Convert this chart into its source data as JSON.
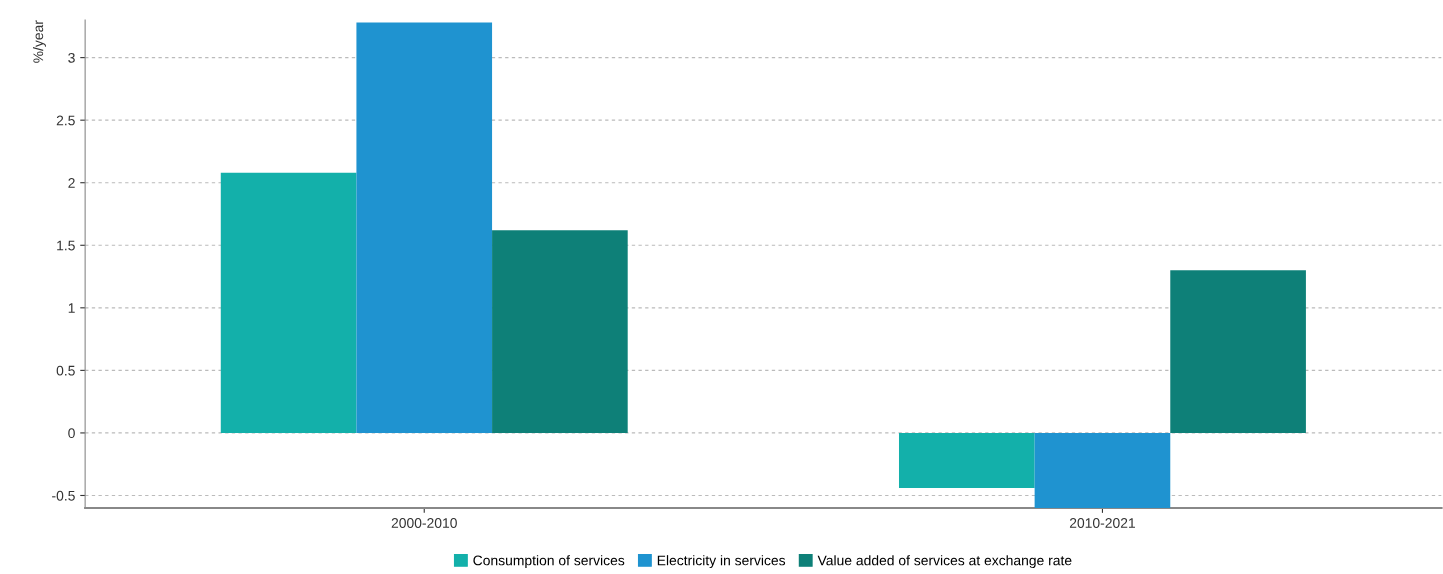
{
  "chart_data": {
    "type": "bar",
    "ylabel": "%/year",
    "categories": [
      "2000-2010",
      "2010-2021"
    ],
    "series": [
      {
        "name": "Consumption of services",
        "color": "#13b0aa",
        "values": [
          2.08,
          -0.44
        ]
      },
      {
        "name": "Electricity in services",
        "color": "#1f93d0",
        "values": [
          3.28,
          -0.6
        ]
      },
      {
        "name": "Value added of services at exchange rate",
        "color": "#0e8078",
        "values": [
          1.62,
          1.3
        ]
      }
    ],
    "ylim": [
      -0.6,
      3.3
    ],
    "yticks": [
      {
        "value": -0.5,
        "label": "-0.5"
      },
      0,
      0.5,
      1,
      1.5,
      2,
      2.5,
      3
    ],
    "grid": "y",
    "legend": "bottom"
  }
}
